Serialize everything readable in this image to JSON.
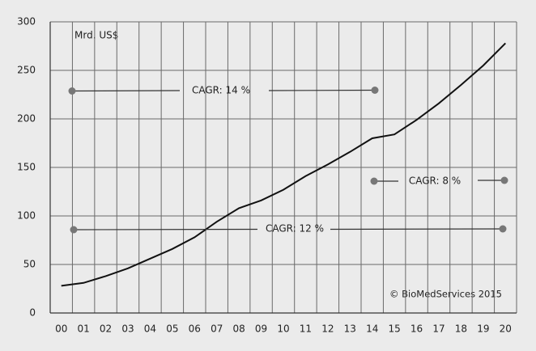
{
  "chart_data": {
    "type": "line",
    "y_label": "Mrd. US$",
    "source": "© BioMedServices 2015",
    "categories": [
      "00",
      "01",
      "02",
      "03",
      "04",
      "05",
      "06",
      "07",
      "08",
      "09",
      "10",
      "11",
      "12",
      "13",
      "14",
      "15",
      "16",
      "17",
      "18",
      "19",
      "20"
    ],
    "values": [
      28,
      31,
      38,
      46,
      56,
      66,
      78,
      94,
      108,
      116,
      127,
      141,
      153,
      166,
      180,
      184,
      199,
      216,
      235,
      255,
      278
    ],
    "color": "#111111",
    "ylim": [
      0,
      300
    ],
    "yticks": [
      0,
      50,
      100,
      150,
      200,
      250,
      300
    ],
    "grid": true,
    "annotations": [
      "CAGR: 14 %",
      "CAGR: 8 %",
      "CAGR: 12 %"
    ]
  }
}
